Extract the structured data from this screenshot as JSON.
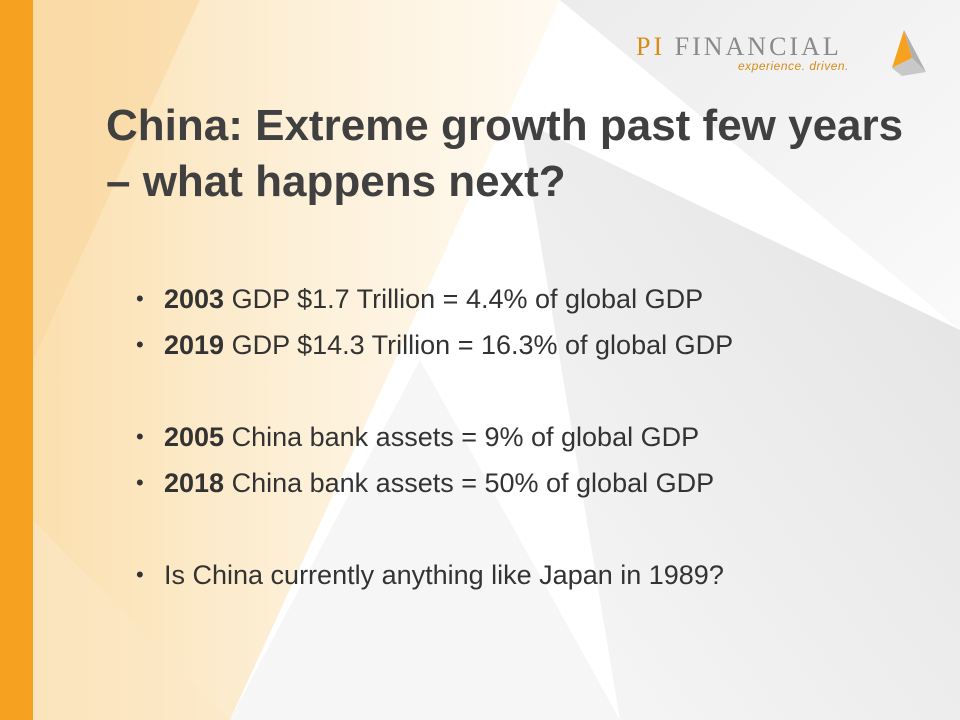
{
  "brand": {
    "name_part1": "PI",
    "name_part2": "FINANCIAL",
    "tagline": "experience. driven."
  },
  "slide": {
    "title": "China: Extreme growth past few years – what happens next?",
    "bullets": [
      {
        "bold": "2003",
        "text": " GDP $1.7 Trillion = 4.4% of global GDP"
      },
      {
        "bold": "2019",
        "text": " GDP $14.3 Trillion = 16.3% of global GDP"
      },
      {
        "bold": "2005",
        "text": " China bank assets = 9% of global GDP"
      },
      {
        "bold": "2018",
        "text": " China bank assets = 50% of global GDP"
      },
      {
        "bold": "",
        "text": "Is China currently anything like Japan in 1989?"
      }
    ]
  },
  "colors": {
    "accent_orange": "#f7a120",
    "title_gray": "#404040",
    "logo_gray": "#8a8a8a"
  }
}
